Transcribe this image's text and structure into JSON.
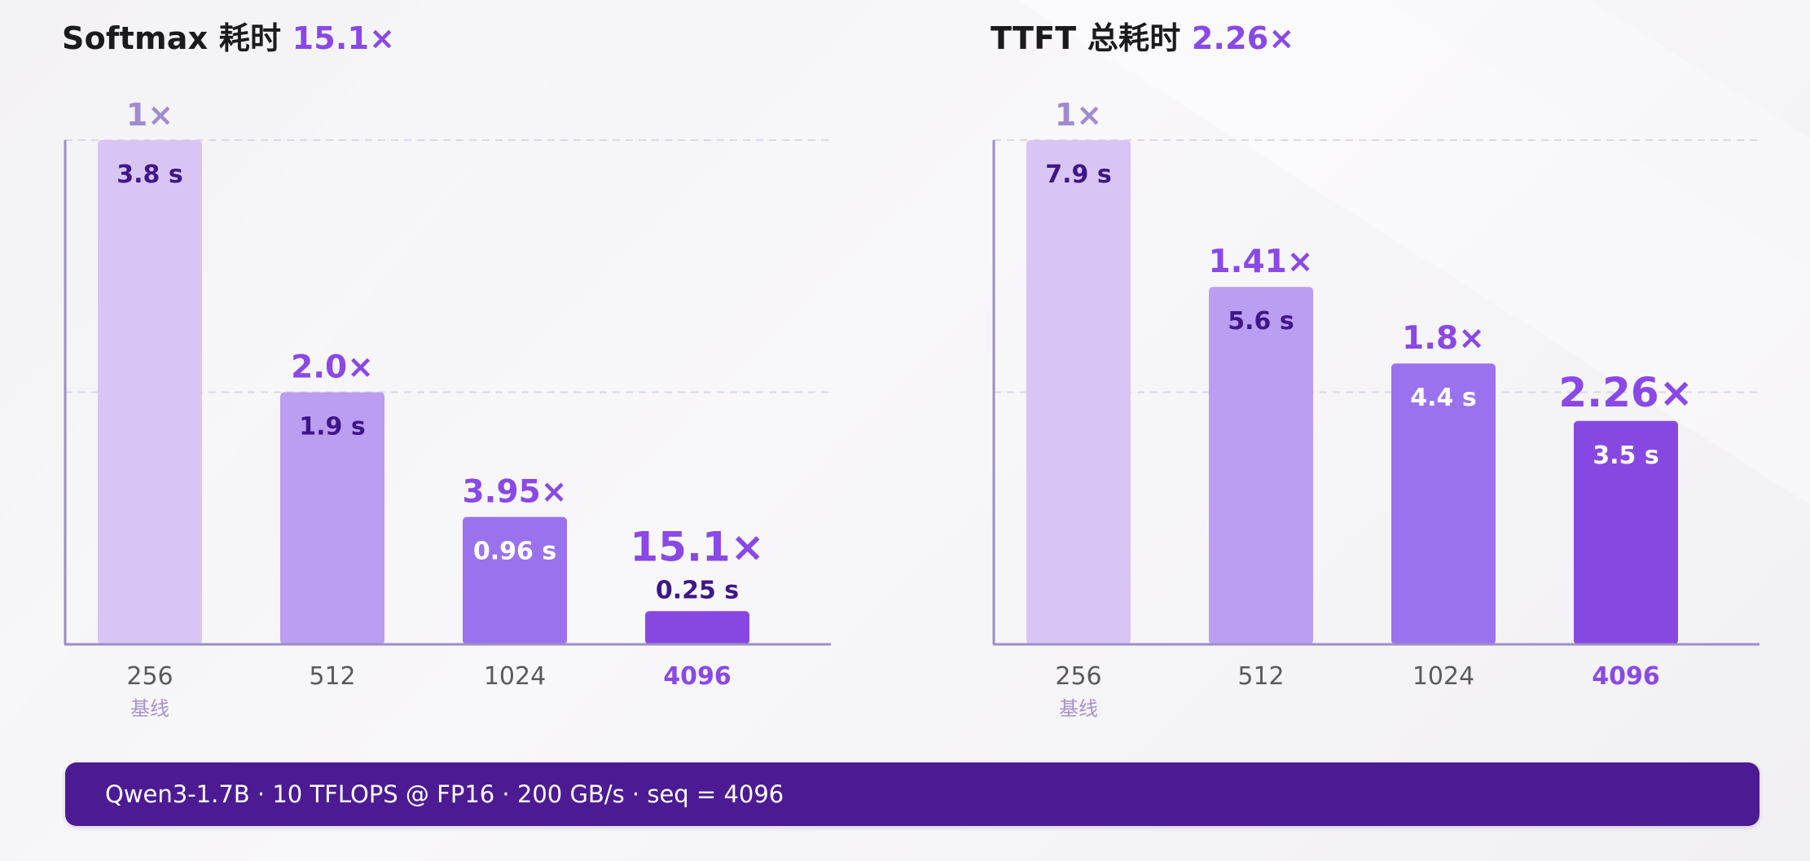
{
  "colors": {
    "bar_256": "#d8c5f3",
    "bar_512": "#bb9ef1",
    "bar_1024": "#9b72ee",
    "bar_4096": "#8748e1",
    "speedup_baseline": "#a08bd0",
    "speedup": "#8a48e6",
    "value_dark": "#3f1688",
    "value_light": "#ffffff",
    "axis": "#9c8ec9",
    "grid": "#dcd7e8",
    "tick": "#5a5a5a",
    "tick_highlight": "#8a48e6",
    "sublabel": "#a592cf",
    "footer_bg": "#4c1b94"
  },
  "chart_data": [
    {
      "type": "bar",
      "title": "Softmax 耗时",
      "title_highlight": "15.1×",
      "categories": [
        "256",
        "512",
        "1024",
        "4096"
      ],
      "category_sublabels": [
        "基线",
        "",
        "",
        ""
      ],
      "highlight_category": "4096",
      "values": [
        3.8,
        1.9,
        0.96,
        0.25
      ],
      "unit": "s",
      "value_labels": [
        "3.8 s",
        "1.9 s",
        "0.96 s",
        "0.25 s"
      ],
      "speedup_labels": [
        "1×",
        "2.0×",
        "3.95×",
        "15.1×"
      ],
      "ylim": [
        0,
        3.8
      ],
      "gridlines": [
        1.9,
        3.8
      ],
      "xlabel": "",
      "ylabel": "",
      "grid": true,
      "legend": "none"
    },
    {
      "type": "bar",
      "title": "TTFT 总耗时",
      "title_highlight": "2.26×",
      "categories": [
        "256",
        "512",
        "1024",
        "4096"
      ],
      "category_sublabels": [
        "基线",
        "",
        "",
        ""
      ],
      "highlight_category": "4096",
      "values": [
        7.9,
        5.6,
        4.4,
        3.5
      ],
      "unit": "s",
      "value_labels": [
        "7.9 s",
        "5.6 s",
        "4.4 s",
        "3.5 s"
      ],
      "speedup_labels": [
        "1×",
        "1.41×",
        "1.8×",
        "2.26×"
      ],
      "ylim": [
        0,
        7.9
      ],
      "gridlines": [
        3.95,
        7.9
      ],
      "xlabel": "",
      "ylabel": "",
      "grid": true,
      "legend": "none"
    }
  ],
  "footer": {
    "text": "Qwen3-1.7B · 10 TFLOPS @ FP16 · 200 GB/s · seq = 4096"
  }
}
